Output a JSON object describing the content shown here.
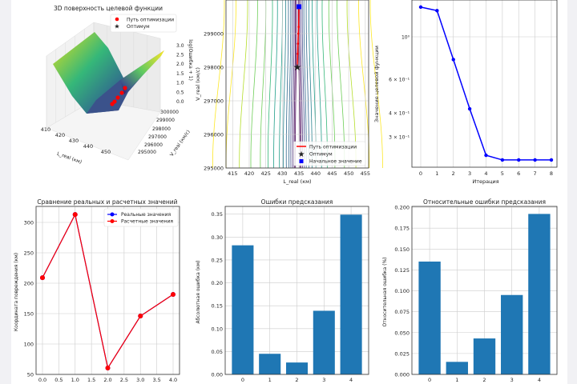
{
  "chart_data": [
    {
      "type": "surface3d",
      "title": "3D поверхность целевой функции",
      "xlabel": "L_real (км)",
      "ylabel": "V_real (км/с)",
      "zlabel": "log(Ошибка + 1)",
      "xticks": [
        "410",
        "420",
        "430",
        "440",
        "450"
      ],
      "yticks": [
        "295000",
        "296000",
        "297000",
        "298000",
        "299000",
        "300000"
      ],
      "zticks": [
        "0.0",
        "0.5",
        "1.0",
        "1.5",
        "2.0",
        "2.5",
        "3.0"
      ],
      "legend": [
        {
          "name": "Путь оптимизации",
          "color": "#ff0000",
          "marker": "circle"
        },
        {
          "name": "Оптимум",
          "color": "#008000",
          "marker": "star"
        }
      ],
      "colormap": "viridis"
    },
    {
      "type": "contour",
      "xlabel": "L_real (км)",
      "ylabel": "V_real (км/с)",
      "xlim": [
        413,
        456
      ],
      "ylim": [
        295000,
        300000
      ],
      "xticks": [
        "415",
        "420",
        "425",
        "430",
        "435",
        "440",
        "445",
        "450",
        "455"
      ],
      "yticks": [
        "295000",
        "296000",
        "297000",
        "298000",
        "299000"
      ],
      "path": {
        "name": "Путь оптимизации",
        "color": "#ff0000",
        "x": [
          435.0,
          434.9,
          434.8,
          434.7,
          434.6,
          434.5
        ],
        "y": [
          299800,
          299200,
          299000,
          298700,
          298400,
          298000
        ]
      },
      "optimum": {
        "name": "Оптимум",
        "color": "#008000",
        "x": 434.5,
        "y": 298000
      },
      "start": {
        "name": "Начальное значение",
        "color": "#0000ff",
        "x": 435.0,
        "y": 299800
      },
      "colormap": "viridis",
      "legend": "bottom-right"
    },
    {
      "type": "line",
      "xlabel": "Итерация",
      "ylabel": "Значение целевой функции",
      "yscale": "log",
      "x": [
        0,
        1,
        2,
        3,
        4,
        5,
        6,
        7,
        8
      ],
      "values": [
        1.43,
        1.37,
        0.76,
        0.42,
        0.24,
        0.227,
        0.227,
        0.227,
        0.227
      ],
      "xticks": [
        "0",
        "1",
        "2",
        "3",
        "4",
        "5",
        "6",
        "7",
        "8"
      ],
      "yticks": [
        {
          "v": 1.0,
          "label": "10⁰"
        },
        {
          "v": 0.6,
          "label": "6 × 10⁻¹"
        },
        {
          "v": 0.4,
          "label": "4 × 10⁻¹"
        },
        {
          "v": 0.3,
          "label": "3 × 10⁻¹"
        }
      ],
      "color": "#0000ff",
      "grid": true
    },
    {
      "type": "line",
      "title": "Сравнение реальных и расчетных значений",
      "ylabel": "Координата повреждения (км)",
      "x": [
        0,
        1,
        2,
        3,
        4
      ],
      "series": [
        {
          "name": "Реальные значения",
          "color": "#0000ff",
          "values": [
            209,
            313,
            60.5,
            146,
            181.5
          ]
        },
        {
          "name": "Расчетные значения",
          "color": "#ff0000",
          "values": [
            209,
            313,
            60.5,
            146,
            181.5
          ]
        }
      ],
      "xlim": [
        -0.2,
        4.2
      ],
      "ylim": [
        50,
        325
      ],
      "xticks": [
        "0.0",
        "0.5",
        "1.0",
        "1.5",
        "2.0",
        "2.5",
        "3.0",
        "3.5",
        "4.0"
      ],
      "yticks": [
        "50",
        "100",
        "150",
        "200",
        "250",
        "300"
      ],
      "legend": "top-right",
      "grid": true
    },
    {
      "type": "bar",
      "title": "Ошибки предсказания",
      "ylabel": "Абсолютная ошибка (км)",
      "categories": [
        "0",
        "1",
        "2",
        "3",
        "4"
      ],
      "values": [
        0.282,
        0.045,
        0.026,
        0.139,
        0.349
      ],
      "ylim": [
        0,
        0.367
      ],
      "yticks": [
        "0.00",
        "0.05",
        "0.10",
        "0.15",
        "0.20",
        "0.25",
        "0.30",
        "0.35"
      ],
      "color": "#1f77b4",
      "grid": true
    },
    {
      "type": "bar",
      "title": "Относительные ошибки предсказания",
      "ylabel": "Относительная ошибка (%)",
      "categories": [
        "0",
        "1",
        "2",
        "3",
        "4"
      ],
      "values": [
        0.135,
        0.015,
        0.043,
        0.095,
        0.192
      ],
      "ylim": [
        0,
        0.201
      ],
      "yticks": [
        "0.000",
        "0.025",
        "0.050",
        "0.075",
        "0.100",
        "0.125",
        "0.150",
        "0.175",
        "0.200"
      ],
      "color": "#1f77b4",
      "grid": true
    }
  ]
}
